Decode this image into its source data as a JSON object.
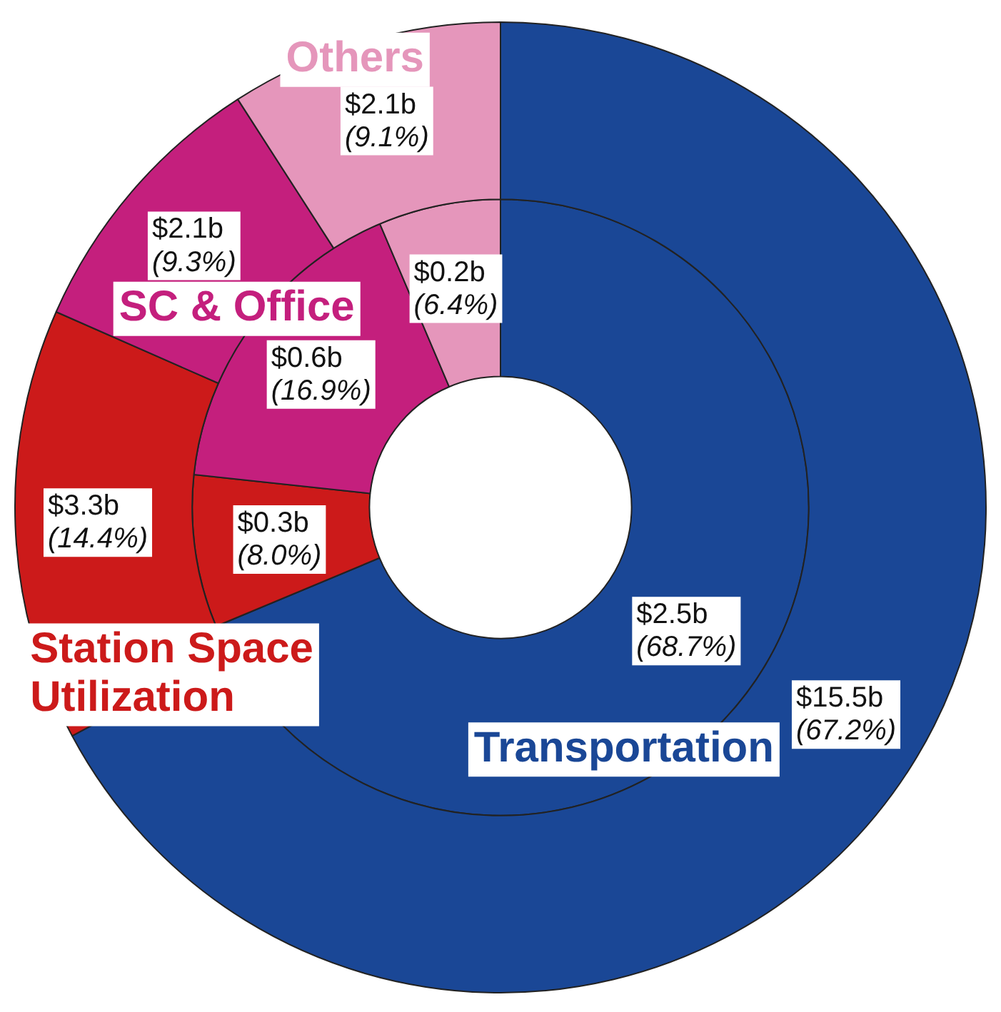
{
  "chart_data": {
    "type": "donut",
    "categories": [
      "Transportation",
      "Station Space Utilization",
      "SC & Office",
      "Others"
    ],
    "colors": [
      "#1a4796",
      "#cc1a1a",
      "#c41f7d",
      "#e596bb"
    ],
    "series": [
      {
        "values": [
          67.2,
          14.4,
          9.3,
          9.1
        ],
        "value_labels": [
          "$15.5b (67.2%)",
          "$3.3b (14.4%)",
          "$2.1b (9.3%)",
          "$2.1b (9.1%)"
        ]
      },
      {
        "values": [
          68.7,
          8.0,
          16.9,
          6.4
        ],
        "value_labels": [
          "$2.5b (68.7%)",
          "$0.3b (8.0%)",
          "$0.6b (16.9%)",
          "$0.2b (6.4%)"
        ]
      }
    ]
  }
}
